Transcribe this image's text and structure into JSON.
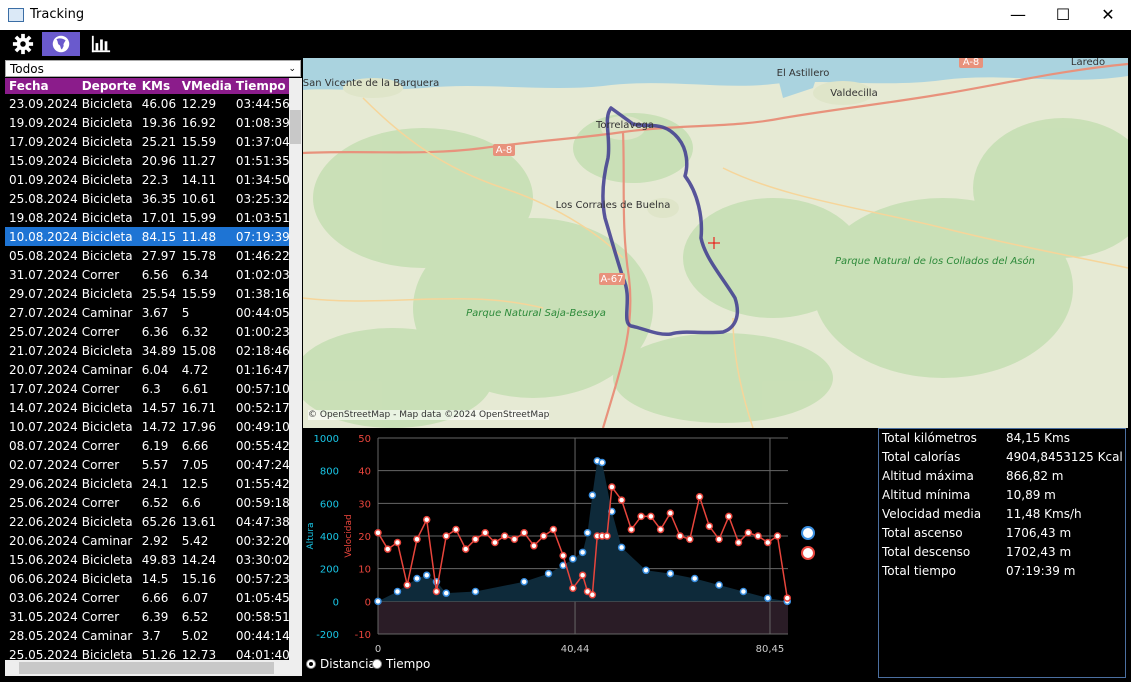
{
  "window": {
    "title": "Tracking",
    "minimize": "—",
    "maximize": "☐",
    "close": "✕"
  },
  "filter": {
    "selected": "Todos"
  },
  "table": {
    "headers": [
      "Fecha",
      "Deporte",
      "KMs",
      "VMedia",
      "Tiempo"
    ],
    "selected_index": 7,
    "rows": [
      [
        "23.09.2024",
        "Bicicleta",
        "46.06",
        "12.29",
        "03:44:56"
      ],
      [
        "19.09.2024",
        "Bicicleta",
        "19.36",
        "16.92",
        "01:08:39"
      ],
      [
        "17.09.2024",
        "Bicicleta",
        "25.21",
        "15.59",
        "01:37:04"
      ],
      [
        "15.09.2024",
        "Bicicleta",
        "20.96",
        "11.27",
        "01:51:35"
      ],
      [
        "01.09.2024",
        "Bicicleta",
        "22.3",
        "14.11",
        "01:34:50"
      ],
      [
        "25.08.2024",
        "Bicicleta",
        "36.35",
        "10.61",
        "03:25:32"
      ],
      [
        "19.08.2024",
        "Bicicleta",
        "17.01",
        "15.99",
        "01:03:51"
      ],
      [
        "10.08.2024",
        "Bicicleta",
        "84.15",
        "11.48",
        "07:19:39"
      ],
      [
        "05.08.2024",
        "Bicicleta",
        "27.97",
        "15.78",
        "01:46:22"
      ],
      [
        "31.07.2024",
        "Correr",
        "6.56",
        "6.34",
        "01:02:03"
      ],
      [
        "29.07.2024",
        "Bicicleta",
        "25.54",
        "15.59",
        "01:38:16"
      ],
      [
        "27.07.2024",
        "Caminar",
        "3.67",
        "5",
        "00:44:05"
      ],
      [
        "25.07.2024",
        "Correr",
        "6.36",
        "6.32",
        "01:00:23"
      ],
      [
        "21.07.2024",
        "Bicicleta",
        "34.89",
        "15.08",
        "02:18:46"
      ],
      [
        "20.07.2024",
        "Caminar",
        "6.04",
        "4.72",
        "01:16:47"
      ],
      [
        "17.07.2024",
        "Correr",
        "6.3",
        "6.61",
        "00:57:10"
      ],
      [
        "14.07.2024",
        "Bicicleta",
        "14.57",
        "16.71",
        "00:52:17"
      ],
      [
        "10.07.2024",
        "Bicicleta",
        "14.72",
        "17.96",
        "00:49:10"
      ],
      [
        "08.07.2024",
        "Correr",
        "6.19",
        "6.66",
        "00:55:42"
      ],
      [
        "02.07.2024",
        "Correr",
        "5.57",
        "7.05",
        "00:47:24"
      ],
      [
        "29.06.2024",
        "Bicicleta",
        "24.1",
        "12.5",
        "01:55:42"
      ],
      [
        "25.06.2024",
        "Correr",
        "6.52",
        "6.6",
        "00:59:18"
      ],
      [
        "22.06.2024",
        "Bicicleta",
        "65.26",
        "13.61",
        "04:47:38"
      ],
      [
        "20.06.2024",
        "Caminar",
        "2.92",
        "5.42",
        "00:32:20"
      ],
      [
        "15.06.2024",
        "Bicicleta",
        "49.83",
        "14.24",
        "03:30:02"
      ],
      [
        "06.06.2024",
        "Bicicleta",
        "14.5",
        "15.16",
        "00:57:23"
      ],
      [
        "03.06.2024",
        "Correr",
        "6.66",
        "6.07",
        "01:05:45"
      ],
      [
        "31.05.2024",
        "Correr",
        "6.39",
        "6.52",
        "00:58:51"
      ],
      [
        "28.05.2024",
        "Caminar",
        "3.7",
        "5.02",
        "00:44:14"
      ],
      [
        "25.05.2024",
        "Bicicleta",
        "51.26",
        "12.73",
        "04:01:40"
      ]
    ]
  },
  "map": {
    "labels": [
      "San Vicente de la Barquera",
      "El Astillero",
      "Valdecilla",
      "Laredo",
      "Torrelavega",
      "Los Corrales de Buelna",
      "Parque Natural Saja-Besaya",
      "Parque Natural de los Collados del Asón"
    ],
    "roads": [
      "A-8",
      "A-8",
      "A-67"
    ],
    "attribution": "© OpenStreetMap - Map data ©2024 OpenStreetMap"
  },
  "chart": {
    "left_axis": {
      "label": "Altura",
      "ticks": [
        "1000",
        "800",
        "600",
        "400",
        "200",
        "0",
        "-200"
      ],
      "color": "#19c6e6"
    },
    "right_axis": {
      "label": "Velocidad",
      "ticks": [
        "50",
        "40",
        "30",
        "20",
        "10",
        "0",
        "-10"
      ],
      "color": "#e8453c"
    },
    "x_ticks": [
      "0",
      "40,44",
      "80,45"
    ]
  },
  "chart_data": {
    "type": "line",
    "x_range": [
      0,
      84.15
    ],
    "series": [
      {
        "axis": "left",
        "color": "#3a8fe0",
        "x": [
          0,
          4,
          8,
          10,
          12,
          14,
          20,
          30,
          35,
          38,
          40,
          42,
          43,
          44,
          45,
          46,
          48,
          50,
          55,
          60,
          65,
          70,
          75,
          80,
          84
        ],
        "values": [
          0,
          60,
          140,
          160,
          120,
          50,
          60,
          120,
          170,
          220,
          260,
          300,
          420,
          650,
          860,
          850,
          550,
          330,
          190,
          170,
          140,
          100,
          60,
          20,
          0
        ]
      },
      {
        "axis": "right",
        "color": "#e8453c",
        "x": [
          0,
          2,
          4,
          6,
          8,
          10,
          12,
          14,
          16,
          18,
          20,
          22,
          24,
          26,
          28,
          30,
          32,
          34,
          36,
          38,
          40,
          42,
          43,
          44,
          45,
          46,
          47,
          48,
          50,
          52,
          54,
          56,
          58,
          60,
          62,
          64,
          66,
          68,
          70,
          72,
          74,
          76,
          78,
          80,
          82,
          84
        ],
        "values": [
          21,
          16,
          18,
          5,
          19,
          25,
          3,
          20,
          22,
          16,
          19,
          21,
          18,
          20,
          19,
          21,
          17,
          20,
          22,
          14,
          4,
          8,
          3,
          2,
          20,
          20,
          20,
          35,
          31,
          22,
          26,
          26,
          22,
          27,
          20,
          19,
          32,
          23,
          19,
          26,
          18,
          21,
          20,
          18,
          20,
          1
        ]
      }
    ]
  },
  "stats": [
    {
      "label": "Total kilómetros",
      "value": "84,15 Kms"
    },
    {
      "label": "Total calorías",
      "value": "4904,8453125 Kcal"
    },
    {
      "label": "Altitud máxima",
      "value": "866,82 m"
    },
    {
      "label": "Altitud mínima",
      "value": "10,89 m"
    },
    {
      "label": "Velocidad media",
      "value": "11,48 Kms/h"
    },
    {
      "label": "Total ascenso",
      "value": "1706,43 m"
    },
    {
      "label": "Total descenso",
      "value": "1702,43 m"
    },
    {
      "label": "Total tiempo",
      "value": "07:19:39 m"
    }
  ],
  "xmode": {
    "options": [
      "Distancia",
      "Tiempo"
    ],
    "selected": "Distancia"
  }
}
